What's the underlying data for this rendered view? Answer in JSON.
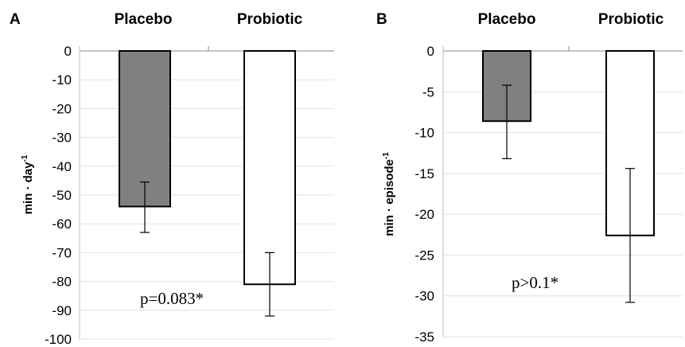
{
  "chart_data": [
    {
      "panel_label": "A",
      "type": "bar",
      "categories": [
        "Placebo",
        "Probiotic"
      ],
      "values": [
        -54,
        -81
      ],
      "error_low": [
        -63,
        -92
      ],
      "error_high": [
        -45.5,
        -70
      ],
      "ylabel": "min · day",
      "ylabel_sup": "-1",
      "ylim": [
        -100,
        0
      ],
      "yticks": [
        0,
        -10,
        -20,
        -30,
        -40,
        -50,
        -60,
        -70,
        -80,
        -90,
        -100
      ],
      "bar_colors": [
        "#808080",
        "#ffffff"
      ],
      "annotation": "p=0.083*",
      "grid": true
    },
    {
      "panel_label": "B",
      "type": "bar",
      "categories": [
        "Placebo",
        "Probiotic"
      ],
      "values": [
        -8.6,
        -22.6
      ],
      "error_low": [
        -13.2,
        -30.8
      ],
      "error_high": [
        -4.2,
        -14.4
      ],
      "ylabel": "min · episode",
      "ylabel_sup": "-1",
      "ylim": [
        -35,
        0
      ],
      "yticks": [
        0,
        -5,
        -10,
        -15,
        -20,
        -25,
        -30,
        -35
      ],
      "bar_colors": [
        "#808080",
        "#ffffff"
      ],
      "annotation": "p>0.1*",
      "grid": true
    }
  ]
}
